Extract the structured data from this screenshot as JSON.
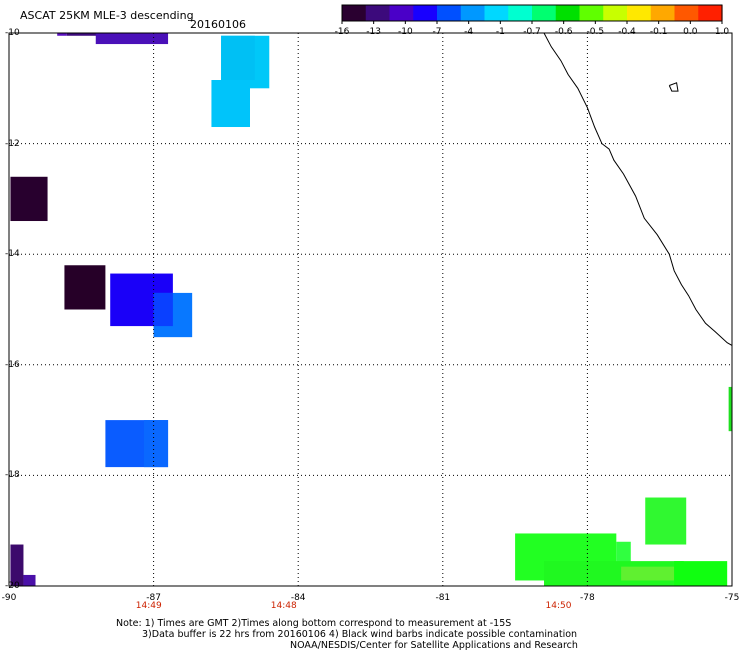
{
  "header": {
    "title": "ASCAT 25KM MLE-3 descending",
    "date": "20160106"
  },
  "colorbar": {
    "ticks": [
      "-16",
      "-13",
      "-10",
      "-7",
      "-4",
      "-1",
      "-0.7",
      "-0.6",
      "-0.5",
      "-0.4",
      "-0.1",
      "0.0",
      "1.0"
    ],
    "colors": [
      "#2a0030",
      "#3c0a7c",
      "#4a00c8",
      "#1800ff",
      "#0050ff",
      "#0098ff",
      "#00d8ff",
      "#00ffd0",
      "#00ff70",
      "#00e000",
      "#60ff00",
      "#c8ff00",
      "#ffe800",
      "#ffa800",
      "#ff5800",
      "#ff2000"
    ]
  },
  "map": {
    "lon_range": [
      -90,
      -75
    ],
    "lat_range": [
      -20,
      -10
    ],
    "lon_ticks": [
      "-90",
      "-87",
      "-84",
      "-81",
      "-78",
      "-75"
    ],
    "lat_ticks": [
      "-10",
      "-12",
      "-14",
      "-16",
      "-18",
      "-20"
    ],
    "time_labels": [
      {
        "lon": -87.1,
        "text": "14:49"
      },
      {
        "lon": -84.3,
        "text": "14:48"
      },
      {
        "lon": -78.6,
        "text": "14:50"
      }
    ],
    "cells": [
      {
        "lon": [
          -89.0,
          -88.8
        ],
        "lat": [
          -10.0,
          -10.05
        ],
        "color": "#5a10c0"
      },
      {
        "lon": [
          -88.8,
          -88.1
        ],
        "lat": [
          -10.0,
          -10.05
        ],
        "color": "#3c0a7c"
      },
      {
        "lon": [
          -88.2,
          -86.7
        ],
        "lat": [
          -10.0,
          -10.2
        ],
        "color": "#4a10b8"
      },
      {
        "lon": [
          -85.6,
          -84.6
        ],
        "lat": [
          -10.05,
          -11.0
        ],
        "color": "#00c8f8"
      },
      {
        "lon": [
          -85.6,
          -84.9
        ],
        "lat": [
          -10.05,
          -10.85
        ],
        "color": "#00c0f4"
      },
      {
        "lon": [
          -85.8,
          -85.0
        ],
        "lat": [
          -10.85,
          -11.7
        ],
        "color": "#00c4fa"
      },
      {
        "lon": [
          -89.97,
          -89.2
        ],
        "lat": [
          -12.6,
          -13.4
        ],
        "color": "#28002e"
      },
      {
        "lon": [
          -88.85,
          -88.0
        ],
        "lat": [
          -14.2,
          -15.0
        ],
        "color": "#260028"
      },
      {
        "lon": [
          -87.9,
          -86.6
        ],
        "lat": [
          -14.35,
          -15.3
        ],
        "color": "#1a00f8"
      },
      {
        "lon": [
          -87.0,
          -86.2
        ],
        "lat": [
          -14.7,
          -15.5
        ],
        "color": "#0878ff"
      },
      {
        "lon": [
          -87.0,
          -86.6
        ],
        "lat": [
          -14.7,
          -15.3
        ],
        "color": "#0a40ff"
      },
      {
        "lon": [
          -88.0,
          -86.7
        ],
        "lat": [
          -17.0,
          -17.85
        ],
        "color": "#0a5cff"
      },
      {
        "lon": [
          -87.2,
          -86.7
        ],
        "lat": [
          -17.0,
          -17.85
        ],
        "color": "#0a68ff"
      },
      {
        "lon": [
          -89.97,
          -89.7
        ],
        "lat": [
          -19.25,
          -20.0
        ],
        "color": "#3c0a6c"
      },
      {
        "lon": [
          -89.7,
          -89.45
        ],
        "lat": [
          -19.8,
          -20.0
        ],
        "color": "#4a10a8"
      },
      {
        "lon": [
          -76.8,
          -75.95
        ],
        "lat": [
          -18.4,
          -19.25
        ],
        "color": "#30f830"
      },
      {
        "lon": [
          -79.5,
          -77.4
        ],
        "lat": [
          -19.05,
          -19.9
        ],
        "color": "#22ff22"
      },
      {
        "lon": [
          -77.4,
          -77.1
        ],
        "lat": [
          -19.2,
          -19.9
        ],
        "color": "#30ff40"
      },
      {
        "lon": [
          -78.9,
          -76.0
        ],
        "lat": [
          -19.55,
          -20.0
        ],
        "color": "#20f820"
      },
      {
        "lon": [
          -77.3,
          -76.2
        ],
        "lat": [
          -19.65,
          -19.9
        ],
        "color": "#60f030"
      },
      {
        "lon": [
          -76.2,
          -75.1
        ],
        "lat": [
          -19.55,
          -20.0
        ],
        "color": "#10ff10"
      },
      {
        "lon": [
          -75.07,
          -75.0
        ],
        "lat": [
          -16.4,
          -17.2
        ],
        "color": "#20e020"
      }
    ],
    "coastline": [
      [
        -78.9,
        -10.0
      ],
      [
        -78.75,
        -10.25
      ],
      [
        -78.55,
        -10.5
      ],
      [
        -78.4,
        -10.75
      ],
      [
        -78.2,
        -11.0
      ],
      [
        -78.0,
        -11.35
      ],
      [
        -77.85,
        -11.7
      ],
      [
        -77.7,
        -12.0
      ],
      [
        -77.55,
        -12.1
      ],
      [
        -77.45,
        -12.3
      ],
      [
        -77.25,
        -12.55
      ],
      [
        -77.0,
        -12.95
      ],
      [
        -76.82,
        -13.35
      ],
      [
        -76.55,
        -13.65
      ],
      [
        -76.3,
        -14.0
      ],
      [
        -76.2,
        -14.3
      ],
      [
        -76.05,
        -14.55
      ],
      [
        -75.9,
        -14.75
      ],
      [
        -75.75,
        -15.0
      ],
      [
        -75.55,
        -15.25
      ],
      [
        -75.35,
        -15.4
      ],
      [
        -75.1,
        -15.6
      ],
      [
        -75.0,
        -15.65
      ]
    ],
    "island": [
      [
        -76.3,
        -10.95
      ],
      [
        -76.15,
        -10.9
      ],
      [
        -76.12,
        -11.05
      ],
      [
        -76.25,
        -11.05
      ],
      [
        -76.3,
        -10.95
      ]
    ]
  },
  "notes": {
    "line1": "Note: 1) Times are GMT 2)Times along bottom correspond to measurement at -15S",
    "line2": "3)Data buffer is 22 hrs from 20160106 4) Black wind barbs indicate possible contamination",
    "line3": "NOAA/NESDIS/Center for Satellite Applications and Research"
  }
}
